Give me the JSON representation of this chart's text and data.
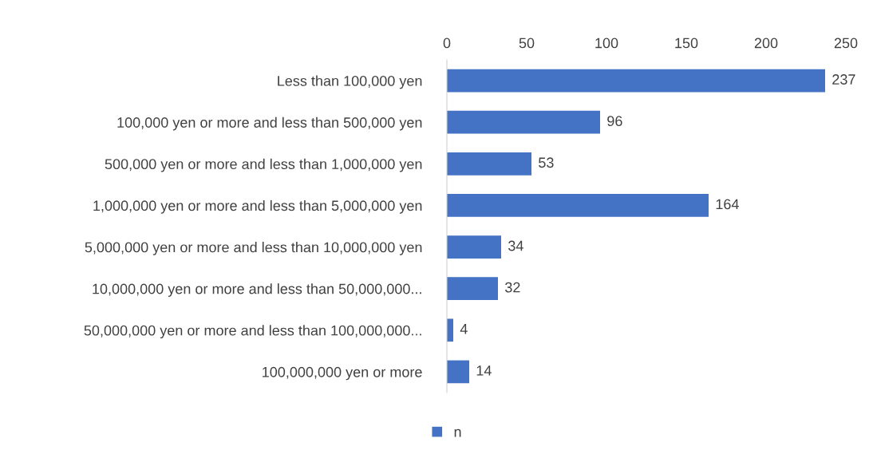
{
  "chart_data": {
    "type": "bar",
    "orientation": "horizontal",
    "categories": [
      "Less than 100,000 yen",
      "100,000 yen or more and less than 500,000 yen",
      "500,000 yen or more and less than 1,000,000 yen",
      "1,000,000 yen or more and less than 5,000,000 yen",
      "5,000,000 yen or more and less than 10,000,000 yen",
      "10,000,000 yen or more and less than 50,000,000...",
      "50,000,000 yen or more and less than 100,000,000...",
      "100,000,000 yen or more"
    ],
    "series": [
      {
        "name": "n",
        "color": "#4472c4",
        "values": [
          237,
          96,
          53,
          164,
          34,
          32,
          4,
          14
        ]
      }
    ],
    "xlim": [
      0,
      250
    ],
    "xticks": [
      0,
      50,
      100,
      150,
      200,
      250
    ],
    "data_labels": true,
    "grid": false,
    "legend": "bottom"
  }
}
